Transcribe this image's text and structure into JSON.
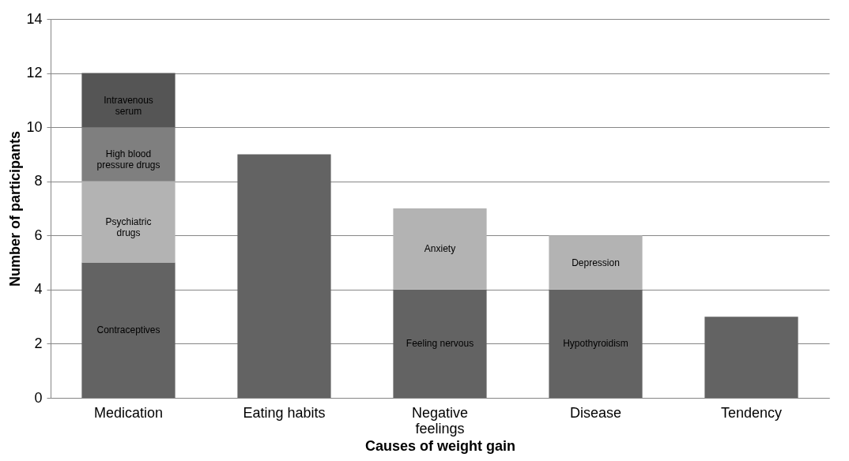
{
  "chart_data": {
    "type": "bar",
    "stacked": true,
    "xlabel": "Causes of weight gain",
    "ylabel": "Number of participants",
    "categories": [
      "Medication",
      "Eating habits",
      "Negative feelings",
      "Disease",
      "Tendency"
    ],
    "series": [
      {
        "color": "#636363",
        "values": [
          5,
          9,
          4,
          4,
          3
        ],
        "value_labels": [
          "Contraceptives",
          null,
          "Feeling nervous",
          "Hypothyroidism",
          null
        ]
      },
      {
        "color": "#b3b3b3",
        "values": [
          3,
          null,
          3,
          2,
          null
        ],
        "value_labels": [
          "Psychiatric drugs",
          null,
          "Anxiety",
          "Depression",
          null
        ]
      },
      {
        "color": "#7f7f7f",
        "values": [
          2,
          null,
          null,
          null,
          null
        ],
        "value_labels": [
          "High blood pressure drugs",
          null,
          null,
          null,
          null
        ]
      },
      {
        "color": "#555555",
        "values": [
          2,
          null,
          null,
          null,
          null
        ],
        "value_labels": [
          "Intravenous serum",
          null,
          null,
          null,
          null
        ]
      }
    ],
    "ylim": [
      0,
      14
    ],
    "yticks": [
      0,
      2,
      4,
      6,
      8,
      10,
      12,
      14
    ],
    "grid": "y",
    "legend": false
  }
}
